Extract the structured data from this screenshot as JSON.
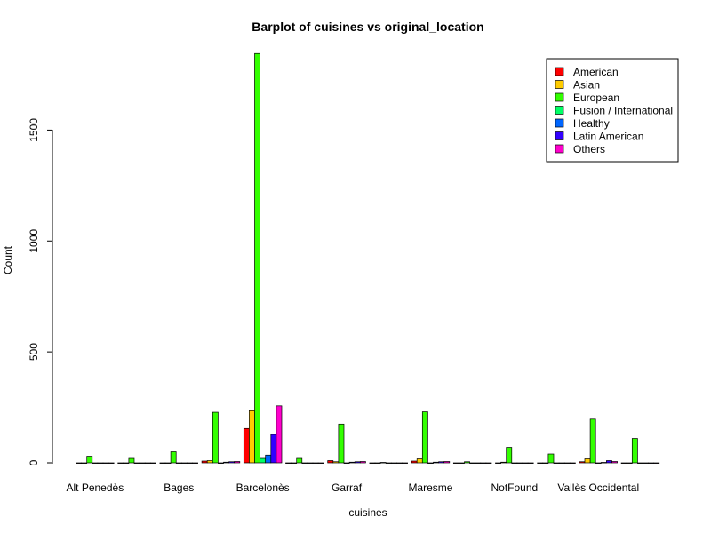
{
  "chart_data": {
    "type": "bar",
    "title": "Barplot of cuisines vs original_location",
    "xlabel": "cuisines",
    "ylabel": "Count",
    "ylim": [
      0,
      1850
    ],
    "yticks": [
      0,
      500,
      1000,
      1500
    ],
    "grid": false,
    "legend_position": "top-right",
    "categories": [
      "Alt Penedès",
      "",
      "Bages",
      "",
      "Barcelonès",
      "",
      "Garraf",
      "",
      "Maresme",
      "",
      "NotFound",
      "",
      "Vallès Occidental",
      ""
    ],
    "series": [
      {
        "name": "American",
        "color": "#ff0000",
        "values": [
          0,
          0,
          0,
          8,
          155,
          0,
          10,
          0,
          8,
          0,
          0,
          0,
          5,
          0
        ]
      },
      {
        "name": "Asian",
        "color": "#ffcc00",
        "values": [
          0,
          0,
          0,
          10,
          235,
          0,
          5,
          0,
          18,
          0,
          3,
          0,
          18,
          0
        ]
      },
      {
        "name": "European",
        "color": "#33ff00",
        "values": [
          30,
          20,
          50,
          228,
          1845,
          20,
          175,
          2,
          230,
          5,
          70,
          40,
          197,
          110
        ]
      },
      {
        "name": "Fusion / International",
        "color": "#00ff66",
        "values": [
          0,
          0,
          0,
          0,
          20,
          0,
          0,
          0,
          0,
          0,
          0,
          0,
          0,
          0
        ]
      },
      {
        "name": "Healthy",
        "color": "#0066ff",
        "values": [
          0,
          0,
          0,
          3,
          35,
          0,
          3,
          0,
          3,
          0,
          0,
          0,
          2,
          0
        ]
      },
      {
        "name": "Latin American",
        "color": "#3300ff",
        "values": [
          0,
          0,
          0,
          5,
          128,
          0,
          5,
          0,
          5,
          0,
          0,
          0,
          10,
          0
        ]
      },
      {
        "name": "Others",
        "color": "#ff00cc",
        "values": [
          0,
          0,
          0,
          6,
          257,
          0,
          6,
          0,
          6,
          0,
          0,
          0,
          6,
          0
        ]
      }
    ]
  }
}
